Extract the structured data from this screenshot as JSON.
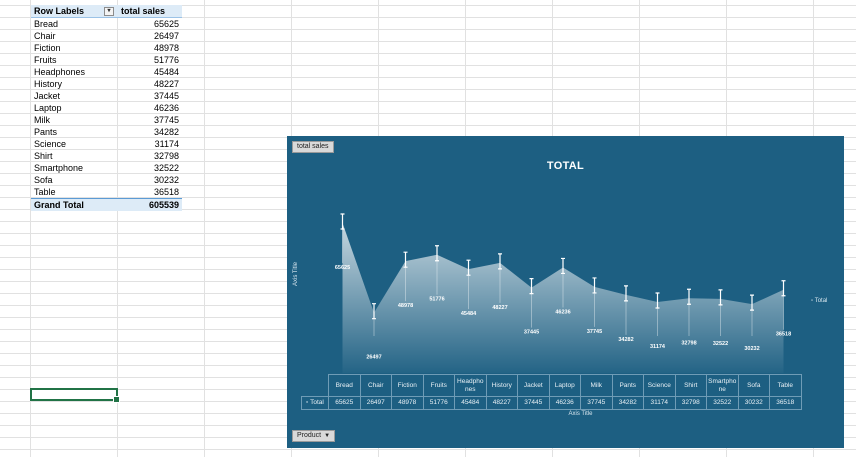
{
  "pivot": {
    "header_label": "Row Labels",
    "header_value": "total sales",
    "filter_icon": "dropdown-arrow-icon",
    "rows": [
      {
        "label": "Bread",
        "value": "65625"
      },
      {
        "label": "Chair",
        "value": "26497"
      },
      {
        "label": "Fiction",
        "value": "48978"
      },
      {
        "label": "Fruits",
        "value": "51776"
      },
      {
        "label": "Headphones",
        "value": "45484"
      },
      {
        "label": "History",
        "value": "48227"
      },
      {
        "label": "Jacket",
        "value": "37445"
      },
      {
        "label": "Laptop",
        "value": "46236"
      },
      {
        "label": "Milk",
        "value": "37745"
      },
      {
        "label": "Pants",
        "value": "34282"
      },
      {
        "label": "Science",
        "value": "31174"
      },
      {
        "label": "Shirt",
        "value": "32798"
      },
      {
        "label": "Smartphone",
        "value": "32522"
      },
      {
        "label": "Sofa",
        "value": "30232"
      },
      {
        "label": "Table",
        "value": "36518"
      }
    ],
    "grand_total_label": "Grand Total",
    "grand_total_value": "605539"
  },
  "chart": {
    "field_button": "total sales",
    "title": "TOTAL",
    "y_axis_title": "Axis Title",
    "x_axis_title": "Axis Title",
    "legend_label": "Total",
    "legend_marker": "▫",
    "table_row_label": "Total",
    "product_button": "Product",
    "product_button_arrow": "▼",
    "colors": {
      "background": "#1d5f82",
      "area_top": "#ffffff",
      "line": "#ffffff"
    }
  },
  "chart_data": {
    "type": "area",
    "title": "TOTAL",
    "xlabel": "Axis Title",
    "ylabel": "Axis Title",
    "categories": [
      "Bread",
      "Chair",
      "Fiction",
      "Fruits",
      "Headphones",
      "History",
      "Jacket",
      "Laptop",
      "Milk",
      "Pants",
      "Science",
      "Shirt",
      "Smartphone",
      "Sofa",
      "Table"
    ],
    "table_headers": [
      "Bread",
      "Chair",
      "Fiction",
      "Fruits",
      "Headpho nes",
      "History",
      "Jacket",
      "Laptop",
      "Milk",
      "Pants",
      "Science",
      "Shirt",
      "Smartpho ne",
      "Sofa",
      "Table"
    ],
    "series": [
      {
        "name": "Total",
        "values": [
          65625,
          26497,
          48978,
          51776,
          45484,
          48227,
          37445,
          46236,
          37745,
          34282,
          31174,
          32798,
          32522,
          30232,
          36518
        ]
      }
    ],
    "ylim": [
      0,
      70000
    ],
    "grid": false,
    "legend": "right",
    "data_table": true,
    "error_bars": true
  }
}
